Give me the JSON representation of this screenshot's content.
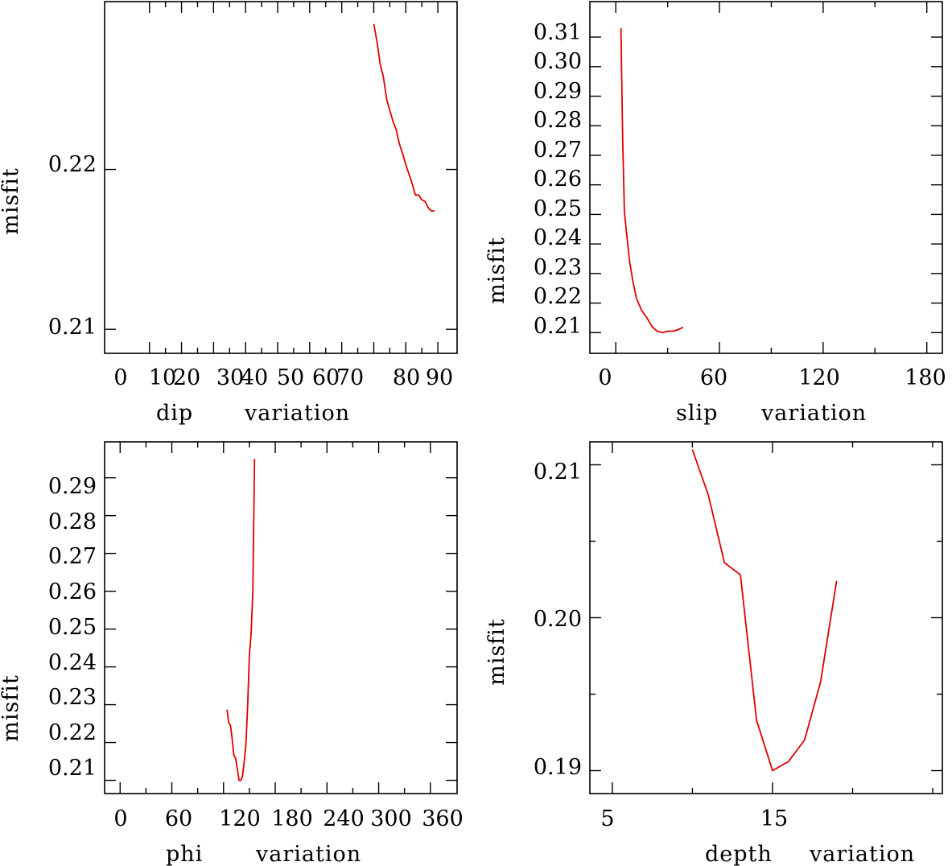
{
  "line_color": "#e00000",
  "chart_data": [
    {
      "type": "line",
      "name": "dip",
      "xlabel": "dip",
      "xlabel2": "variation",
      "ylabel": "misfit",
      "xlim": [
        -14,
        96
      ],
      "ylim": [
        0.2085,
        0.2305
      ],
      "xticks": [
        0,
        10,
        20,
        30,
        40,
        50,
        60,
        70,
        80,
        90
      ],
      "xtick_labels": [
        "0",
        "10",
        "20",
        "30",
        "40",
        "50",
        "60",
        "70",
        "80",
        "90"
      ],
      "yticks": [
        0.21,
        0.22
      ],
      "ytick_labels": [
        "0.21",
        "0.22"
      ],
      "x": [
        70,
        71,
        72,
        73,
        74,
        75,
        76,
        77,
        78,
        79,
        80,
        81,
        82,
        83,
        84,
        85,
        86,
        87,
        88,
        89
      ],
      "y": [
        0.2291,
        0.228,
        0.2266,
        0.2258,
        0.2244,
        0.2237,
        0.223,
        0.2225,
        0.2216,
        0.221,
        0.2203,
        0.2197,
        0.2191,
        0.2184,
        0.2184,
        0.2181,
        0.218,
        0.2176,
        0.2174,
        0.2174
      ]
    },
    {
      "type": "line",
      "name": "slip",
      "xlabel": "slip",
      "xlabel2": "variation",
      "ylabel": "misfit",
      "xlim": [
        -15,
        189
      ],
      "ylim": [
        0.203,
        0.322
      ],
      "xticks": [
        0,
        60,
        120,
        180
      ],
      "xtick_labels": [
        "0",
        "60",
        "120",
        "180"
      ],
      "yticks": [
        0.21,
        0.22,
        0.23,
        0.24,
        0.25,
        0.26,
        0.27,
        0.28,
        0.29,
        0.3,
        0.31
      ],
      "ytick_labels": [
        "0.21",
        "0.22",
        "0.23",
        "0.24",
        "0.25",
        "0.26",
        "0.27",
        "0.28",
        "0.29",
        "0.30",
        "0.31"
      ],
      "x": [
        3,
        4,
        5,
        6,
        8,
        10,
        12,
        15,
        18,
        21,
        24,
        27,
        30,
        33,
        36,
        39
      ],
      "y": [
        0.313,
        0.275,
        0.251,
        0.245,
        0.234,
        0.227,
        0.2215,
        0.2175,
        0.215,
        0.212,
        0.2105,
        0.21,
        0.2105,
        0.2105,
        0.211,
        0.2118
      ]
    },
    {
      "type": "line",
      "name": "phi",
      "xlabel": "phi",
      "xlabel2": "variation",
      "ylabel": "misfit",
      "xlim": [
        -18,
        391
      ],
      "ylim": [
        0.2065,
        0.2995
      ],
      "xticks": [
        0,
        60,
        120,
        180,
        240,
        300,
        360
      ],
      "xtick_labels": [
        "0",
        "60",
        "120",
        "180",
        "240",
        "300",
        "360"
      ],
      "yticks": [
        0.21,
        0.22,
        0.23,
        0.24,
        0.25,
        0.26,
        0.27,
        0.28,
        0.29
      ],
      "ytick_labels": [
        "0.21",
        "0.22",
        "0.23",
        "0.24",
        "0.25",
        "0.26",
        "0.27",
        "0.28",
        "0.29"
      ],
      "x": [
        124,
        126,
        128,
        130,
        132,
        134,
        136,
        138,
        140,
        142,
        144,
        146,
        148,
        150,
        152,
        154,
        156
      ],
      "y": [
        0.2287,
        0.2253,
        0.2245,
        0.221,
        0.2166,
        0.2158,
        0.213,
        0.21,
        0.21,
        0.211,
        0.215,
        0.2195,
        0.23,
        0.243,
        0.249,
        0.26,
        0.295
      ]
    },
    {
      "type": "line",
      "name": "depth",
      "xlabel": "depth",
      "xlabel2": "variation",
      "ylabel": "misfit",
      "xlim": [
        3.6,
        25.6
      ],
      "ylim": [
        0.1885,
        0.2115
      ],
      "xticks": [
        5,
        15
      ],
      "xtick_labels": [
        "5",
        "15"
      ],
      "minor_xticks": [
        10,
        20,
        25
      ],
      "yticks": [
        0.19,
        0.2,
        0.21
      ],
      "ytick_labels": [
        "0.19",
        "0.20",
        "0.21"
      ],
      "minor_yticks": [
        0.195,
        0.205
      ],
      "x": [
        10,
        11,
        12,
        13,
        14,
        15,
        16,
        17,
        18,
        19
      ],
      "y": [
        0.211,
        0.208,
        0.2036,
        0.2028,
        0.1933,
        0.19,
        0.1906,
        0.192,
        0.1958,
        0.2024
      ]
    }
  ]
}
